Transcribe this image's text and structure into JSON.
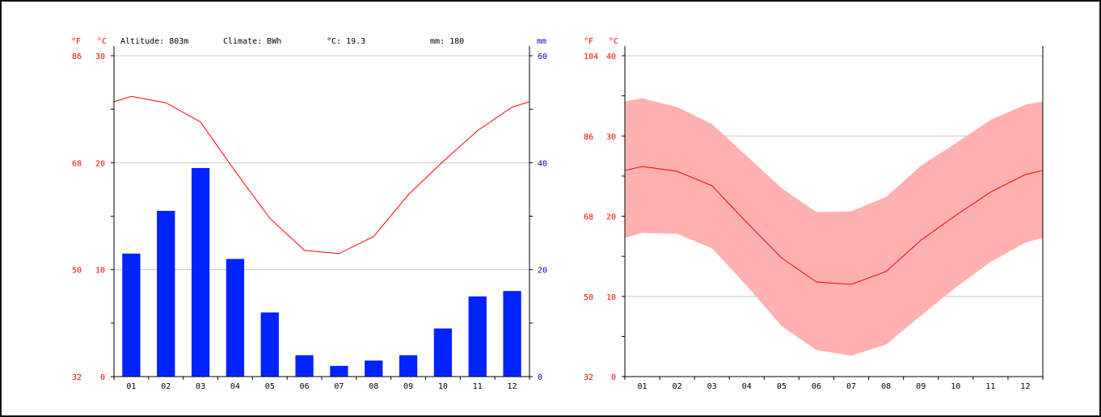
{
  "colors": {
    "temp": "#ff0000",
    "precip": "#0000ff",
    "bar": "#0022ff",
    "band": "#ffb0b0",
    "grid": "#c8c8c8",
    "axis": "#000000"
  },
  "header": {
    "unit_f": "°F",
    "unit_c": "°C",
    "unit_mm": "mm",
    "altitude": "Altitude: 803m",
    "climate": "Climate: BWh",
    "mean_temp": "°C: 19.3",
    "annual_precip": "mm: 180"
  },
  "chart_data": [
    {
      "type": "bar",
      "categories": [
        "01",
        "02",
        "03",
        "04",
        "05",
        "06",
        "07",
        "08",
        "09",
        "10",
        "11",
        "12"
      ],
      "series": [
        {
          "values": [
            23,
            31,
            39,
            22,
            12,
            4,
            2,
            3,
            4,
            9,
            15,
            16
          ]
        },
        {
          "values": [
            26.2,
            25.6,
            23.8,
            19.2,
            14.8,
            11.8,
            11.5,
            13.1,
            17.0,
            20.1,
            23.0,
            25.2
          ]
        }
      ],
      "ylim_c": [
        0,
        30
      ],
      "ylim_mm": [
        0,
        60
      ],
      "ylim_f": [
        32,
        86
      ],
      "yticks_c": [
        "0",
        "10",
        "20",
        "30"
      ],
      "yticks_f": [
        "32",
        "50",
        "68",
        "86"
      ],
      "yticks_mm": [
        "0",
        "20",
        "40",
        "60"
      ],
      "grid": true
    },
    {
      "type": "area",
      "categories": [
        "01",
        "02",
        "03",
        "04",
        "05",
        "06",
        "07",
        "08",
        "09",
        "10",
        "11",
        "12"
      ],
      "series": [
        {
          "values": [
            34.7,
            33.6,
            31.5,
            27.5,
            23.5,
            20.5,
            20.6,
            22.4,
            26.3,
            29.1,
            32.0,
            33.9
          ]
        },
        {
          "values": [
            26.2,
            25.6,
            23.8,
            19.2,
            14.8,
            11.8,
            11.5,
            13.1,
            17.0,
            20.1,
            23.0,
            25.2
          ]
        },
        {
          "values": [
            17.9,
            17.8,
            16.0,
            11.3,
            6.3,
            3.3,
            2.6,
            4.0,
            7.6,
            11.1,
            14.3,
            16.7
          ]
        }
      ],
      "ylim_c": [
        0,
        40
      ],
      "ylim_f": [
        32,
        104
      ],
      "yticks_c": [
        "0",
        "10",
        "20",
        "30",
        "40"
      ],
      "yticks_f": [
        "32",
        "50",
        "68",
        "86",
        "104"
      ],
      "grid": true
    }
  ]
}
